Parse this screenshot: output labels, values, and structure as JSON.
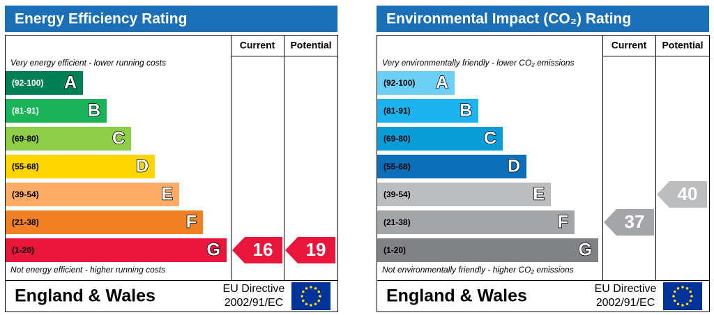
{
  "panels": [
    {
      "title": "Energy Efficiency Rating",
      "columns": [
        "Current",
        "Potential"
      ],
      "top_note": "Very energy efficient - lower running costs",
      "bands": [
        {
          "range": "(92-100)",
          "letter": "A",
          "color": "#008054",
          "text_color": "#ffffff"
        },
        {
          "range": "(81-91)",
          "letter": "B",
          "color": "#19b459",
          "text_color": "#ffffff"
        },
        {
          "range": "(69-80)",
          "letter": "C",
          "color": "#8dce46",
          "text_color": "#000000"
        },
        {
          "range": "(55-68)",
          "letter": "D",
          "color": "#ffd500",
          "text_color": "#000000"
        },
        {
          "range": "(39-54)",
          "letter": "E",
          "color": "#fcaa65",
          "text_color": "#000000"
        },
        {
          "range": "(21-38)",
          "letter": "F",
          "color": "#ef8023",
          "text_color": "#000000"
        },
        {
          "range": "(1-20)",
          "letter": "G",
          "color": "#e9153b",
          "text_color": "#000000"
        }
      ],
      "bottom_note": "Not energy efficient - higher running costs",
      "current": 16,
      "potential": 19,
      "region": "England & Wales",
      "directive": [
        "EU Directive",
        "2002/91/EC"
      ]
    },
    {
      "title": "Environmental Impact (CO₂) Rating",
      "columns": [
        "Current",
        "Potential"
      ],
      "top_note": "Very environmentally friendly - lower CO₂ emissions",
      "bands": [
        {
          "range": "(92-100)",
          "letter": "A",
          "color": "#6ccff6",
          "text_color": "#000000"
        },
        {
          "range": "(81-91)",
          "letter": "B",
          "color": "#1cb3f0",
          "text_color": "#000000"
        },
        {
          "range": "(69-80)",
          "letter": "C",
          "color": "#0a9bd9",
          "text_color": "#000000"
        },
        {
          "range": "(55-68)",
          "letter": "D",
          "color": "#0a6fb8",
          "text_color": "#000000"
        },
        {
          "range": "(39-54)",
          "letter": "E",
          "color": "#bbbdbf",
          "text_color": "#000000"
        },
        {
          "range": "(21-38)",
          "letter": "F",
          "color": "#a3a5a8",
          "text_color": "#000000"
        },
        {
          "range": "(1-20)",
          "letter": "G",
          "color": "#808285",
          "text_color": "#000000"
        }
      ],
      "bottom_note": "Not environmentally friendly - higher CO₂ emissions",
      "current": 37,
      "potential": 40,
      "region": "England & Wales",
      "directive": [
        "EU Directive",
        "2002/91/EC"
      ]
    }
  ]
}
